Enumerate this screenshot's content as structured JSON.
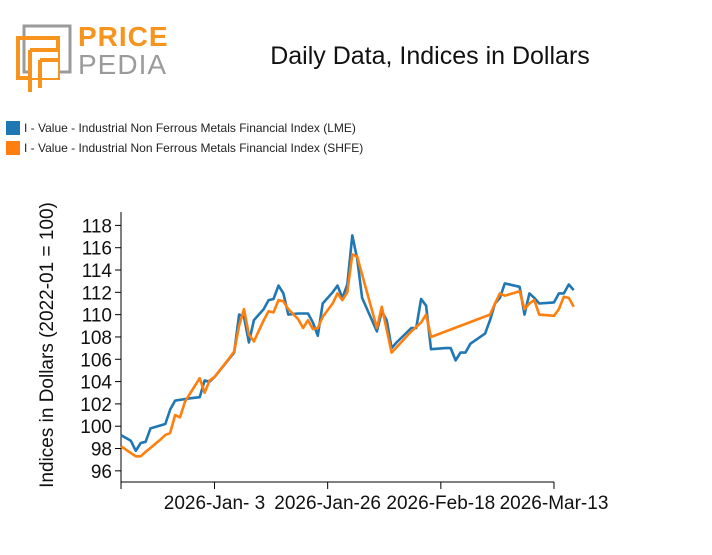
{
  "logo": {
    "word1": "PRICE",
    "word2": "PEDIA",
    "colors": {
      "orange": "#F7941D",
      "gray": "#9B9B9B"
    }
  },
  "chart_data": {
    "type": "line",
    "title": "Daily Data, Indices in Dollars",
    "ylabel": "Indices in Dollars (2022-01 = 100)",
    "xlabel": "",
    "ylim": [
      95,
      119.2
    ],
    "yticks": [
      96,
      98,
      100,
      102,
      104,
      106,
      108,
      110,
      112,
      114,
      116,
      118
    ],
    "xlim": [
      "2025-12-15",
      "2026-03-13"
    ],
    "xticks": [
      {
        "date": "2026-01-03",
        "label": "2026-Jan- 3"
      },
      {
        "date": "2026-01-26",
        "label": "2026-Jan-26"
      },
      {
        "date": "2026-02-18",
        "label": "2026-Feb-18"
      },
      {
        "date": "2026-03-13",
        "label": "2026-Mar-13"
      }
    ],
    "grid": false,
    "legend_position": "top-left",
    "series": [
      {
        "name": "I - Value - Industrial Non Ferrous Metals Financial Index (LME)",
        "color": "#1F77B4",
        "points": [
          [
            "2025-12-15",
            99.2
          ],
          [
            "2025-12-17",
            98.7
          ],
          [
            "2025-12-18",
            97.8
          ],
          [
            "2025-12-19",
            98.5
          ],
          [
            "2025-12-20",
            98.6
          ],
          [
            "2025-12-21",
            99.8
          ],
          [
            "2025-12-24",
            100.2
          ],
          [
            "2025-12-25",
            101.5
          ],
          [
            "2025-12-26",
            102.3
          ],
          [
            "2025-12-29",
            102.5
          ],
          [
            "2025-12-31",
            102.6
          ],
          [
            "2026-01-01",
            104.1
          ],
          [
            "2026-01-02",
            104.0
          ],
          [
            "2026-01-03",
            104.4
          ],
          [
            "2026-01-07",
            106.6
          ],
          [
            "2026-01-08",
            110.0
          ],
          [
            "2026-01-09",
            109.8
          ],
          [
            "2026-01-10",
            107.5
          ],
          [
            "2026-01-11",
            109.5
          ],
          [
            "2026-01-13",
            110.5
          ],
          [
            "2026-01-14",
            111.3
          ],
          [
            "2026-01-15",
            111.4
          ],
          [
            "2026-01-16",
            112.6
          ],
          [
            "2026-01-17",
            111.9
          ],
          [
            "2026-01-18",
            110.0
          ],
          [
            "2026-01-20",
            110.1
          ],
          [
            "2026-01-22",
            110.1
          ],
          [
            "2026-01-23",
            109.3
          ],
          [
            "2026-01-24",
            108.1
          ],
          [
            "2026-01-25",
            111.0
          ],
          [
            "2026-01-27",
            112.0
          ],
          [
            "2026-01-28",
            112.6
          ],
          [
            "2026-01-29",
            111.5
          ],
          [
            "2026-01-30",
            112.7
          ],
          [
            "2026-01-31",
            117.1
          ],
          [
            "2026-02-01",
            115.0
          ],
          [
            "2026-02-02",
            111.5
          ],
          [
            "2026-02-05",
            108.5
          ],
          [
            "2026-02-06",
            110.3
          ],
          [
            "2026-02-07",
            109.5
          ],
          [
            "2026-02-08",
            107.0
          ],
          [
            "2026-02-09",
            107.5
          ],
          [
            "2026-02-12",
            108.8
          ],
          [
            "2026-02-13",
            108.8
          ],
          [
            "2026-02-14",
            111.4
          ],
          [
            "2026-02-15",
            110.8
          ],
          [
            "2026-02-16",
            106.9
          ],
          [
            "2026-02-19",
            107.0
          ],
          [
            "2026-02-20",
            107.0
          ],
          [
            "2026-02-21",
            105.9
          ],
          [
            "2026-02-22",
            106.6
          ],
          [
            "2026-02-23",
            106.6
          ],
          [
            "2026-02-24",
            107.4
          ],
          [
            "2026-02-27",
            108.3
          ],
          [
            "2026-02-28",
            109.5
          ],
          [
            "2026-03-01",
            111.0
          ],
          [
            "2026-03-02",
            111.5
          ],
          [
            "2026-03-03",
            112.8
          ],
          [
            "2026-03-06",
            112.5
          ],
          [
            "2026-03-07",
            110.0
          ],
          [
            "2026-03-08",
            111.9
          ],
          [
            "2026-03-09",
            111.5
          ],
          [
            "2026-03-10",
            111.0
          ],
          [
            "2026-03-13",
            111.1
          ],
          [
            "2026-03-14",
            111.9
          ],
          [
            "2026-03-15",
            111.9
          ],
          [
            "2026-03-16",
            112.7
          ],
          [
            "2026-03-17",
            112.2
          ]
        ]
      },
      {
        "name": "I - Value - Industrial Non Ferrous Metals Financial Index (SHFE)",
        "color": "#FF7F0E",
        "points": [
          [
            "2025-12-15",
            98.2
          ],
          [
            "2025-12-17",
            97.6
          ],
          [
            "2025-12-18",
            97.3
          ],
          [
            "2025-12-19",
            97.3
          ],
          [
            "2025-12-20",
            97.7
          ],
          [
            "2025-12-23",
            98.8
          ],
          [
            "2025-12-24",
            99.2
          ],
          [
            "2025-12-25",
            99.4
          ],
          [
            "2025-12-26",
            101.0
          ],
          [
            "2025-12-27",
            100.8
          ],
          [
            "2025-12-28",
            102.2
          ],
          [
            "2025-12-30",
            103.6
          ],
          [
            "2025-12-31",
            104.3
          ],
          [
            "2026-01-01",
            103.0
          ],
          [
            "2026-01-02",
            104.1
          ],
          [
            "2026-01-03",
            104.4
          ],
          [
            "2026-01-06",
            106.1
          ],
          [
            "2026-01-07",
            106.7
          ],
          [
            "2026-01-08",
            109.0
          ],
          [
            "2026-01-09",
            110.5
          ],
          [
            "2026-01-10",
            108.2
          ],
          [
            "2026-01-11",
            107.6
          ],
          [
            "2026-01-13",
            109.5
          ],
          [
            "2026-01-14",
            110.3
          ],
          [
            "2026-01-15",
            110.2
          ],
          [
            "2026-01-16",
            111.3
          ],
          [
            "2026-01-17",
            111.2
          ],
          [
            "2026-01-18",
            110.5
          ],
          [
            "2026-01-20",
            109.6
          ],
          [
            "2026-01-21",
            108.8
          ],
          [
            "2026-01-22",
            109.5
          ],
          [
            "2026-01-23",
            108.7
          ],
          [
            "2026-01-24",
            108.8
          ],
          [
            "2026-01-25",
            109.8
          ],
          [
            "2026-01-27",
            111.0
          ],
          [
            "2026-01-28",
            111.9
          ],
          [
            "2026-01-29",
            111.3
          ],
          [
            "2026-01-30",
            112.0
          ],
          [
            "2026-01-31",
            115.4
          ],
          [
            "2026-02-01",
            115.2
          ],
          [
            "2026-02-03",
            112.0
          ],
          [
            "2026-02-05",
            108.8
          ],
          [
            "2026-02-06",
            110.7
          ],
          [
            "2026-02-08",
            106.6
          ],
          [
            "2026-02-12",
            108.5
          ],
          [
            "2026-02-14",
            109.3
          ],
          [
            "2026-02-15",
            110.0
          ],
          [
            "2026-02-16",
            108.0
          ],
          [
            "2026-02-28",
            110.0
          ],
          [
            "2026-03-01",
            111.0
          ],
          [
            "2026-03-02",
            111.9
          ],
          [
            "2026-03-03",
            111.7
          ],
          [
            "2026-03-06",
            112.1
          ],
          [
            "2026-03-07",
            110.5
          ],
          [
            "2026-03-08",
            111.0
          ],
          [
            "2026-03-09",
            111.3
          ],
          [
            "2026-03-10",
            110.0
          ],
          [
            "2026-03-13",
            109.9
          ],
          [
            "2026-03-14",
            110.5
          ],
          [
            "2026-03-15",
            111.6
          ],
          [
            "2026-03-16",
            111.5
          ],
          [
            "2026-03-17",
            110.7
          ]
        ]
      }
    ]
  }
}
